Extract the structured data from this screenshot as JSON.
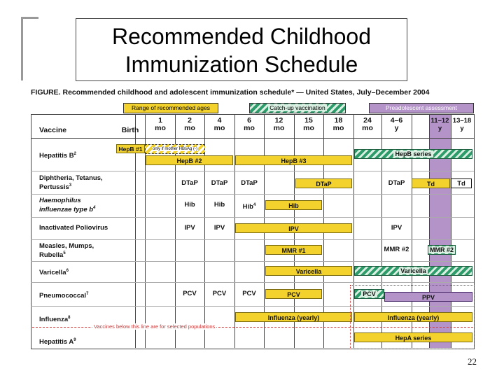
{
  "slide": {
    "title_line1": "Recommended Childhood",
    "title_line2": "Immunization Schedule",
    "page_number": "22"
  },
  "figure": {
    "caption": "FIGURE. Recommended childhood and adolescent immunization schedule* — United States, July–December 2004",
    "legend": {
      "range": "Range of recommended ages",
      "catchup": "Catch-up vaccination",
      "preadolescent": "Preadolescent assessment"
    },
    "columns": [
      {
        "line1": "Vaccine",
        "line2": ""
      },
      {
        "line1": "Birth",
        "line2": ""
      },
      {
        "line1": "1",
        "line2": "mo"
      },
      {
        "line1": "2",
        "line2": "mo"
      },
      {
        "line1": "4",
        "line2": "mo"
      },
      {
        "line1": "6",
        "line2": "mo"
      },
      {
        "line1": "12",
        "line2": "mo"
      },
      {
        "line1": "15",
        "line2": "mo"
      },
      {
        "line1": "18",
        "line2": "mo"
      },
      {
        "line1": "24",
        "line2": "mo"
      },
      {
        "line1": "4–6",
        "line2": "y"
      },
      {
        "line1": "11–12",
        "line2": "y"
      },
      {
        "line1": "13–18",
        "line2": "y"
      }
    ],
    "rows": {
      "hepb": {
        "label": "Hepatitis B",
        "sup": "2",
        "dose1": "HepB #1",
        "dose1_note": "only if mother HBsAg (-)",
        "dose2": "HepB #2",
        "dose3": "HepB #3",
        "series": "HepB series"
      },
      "dtap": {
        "label1": "Diphtheria, Tetanus,",
        "label2": "Pertussis",
        "sup": "3",
        "c2": "DTaP",
        "c4": "DTaP",
        "c6": "DTaP",
        "bar": "DTaP",
        "c46": "DTaP",
        "td": "Td",
        "td2": "Td"
      },
      "hib": {
        "label1": "Haemophilus",
        "label2": "influenzae type b",
        "sup": "4",
        "c2": "Hib",
        "c4": "Hib",
        "c6": "Hib",
        "c6sup": "4",
        "bar": "Hib"
      },
      "ipv": {
        "label": "Inactivated Poliovirus",
        "c2": "IPV",
        "c4": "IPV",
        "bar": "IPV",
        "c46": "IPV"
      },
      "mmr": {
        "label1": "Measles, Mumps,",
        "label2": "Rubella",
        "sup": "5",
        "bar": "MMR #1",
        "c46": "MMR #2",
        "catch": "MMR #2"
      },
      "var": {
        "label": "Varicella",
        "sup": "6",
        "bar": "Varicella",
        "catch": "Varicella"
      },
      "pcv": {
        "label": "Pneumococcal",
        "sup": "7",
        "c2": "PCV",
        "c4": "PCV",
        "c6": "PCV",
        "bar": "PCV",
        "catch": "PCV",
        "ppv": "PPV"
      },
      "flu": {
        "label": "Influenza",
        "sup": "8",
        "bar": "Influenza (yearly)",
        "bar2": "Influenza (yearly)"
      },
      "hepa": {
        "label": "Hepatitis A",
        "sup": "9",
        "series": "HepA series"
      }
    },
    "divider_note": "Vaccines below this line are for selected populations"
  },
  "colors": {
    "range": "#f3d22e",
    "catchup": "#2e9c6a",
    "preadolescent": "#b493c9"
  }
}
